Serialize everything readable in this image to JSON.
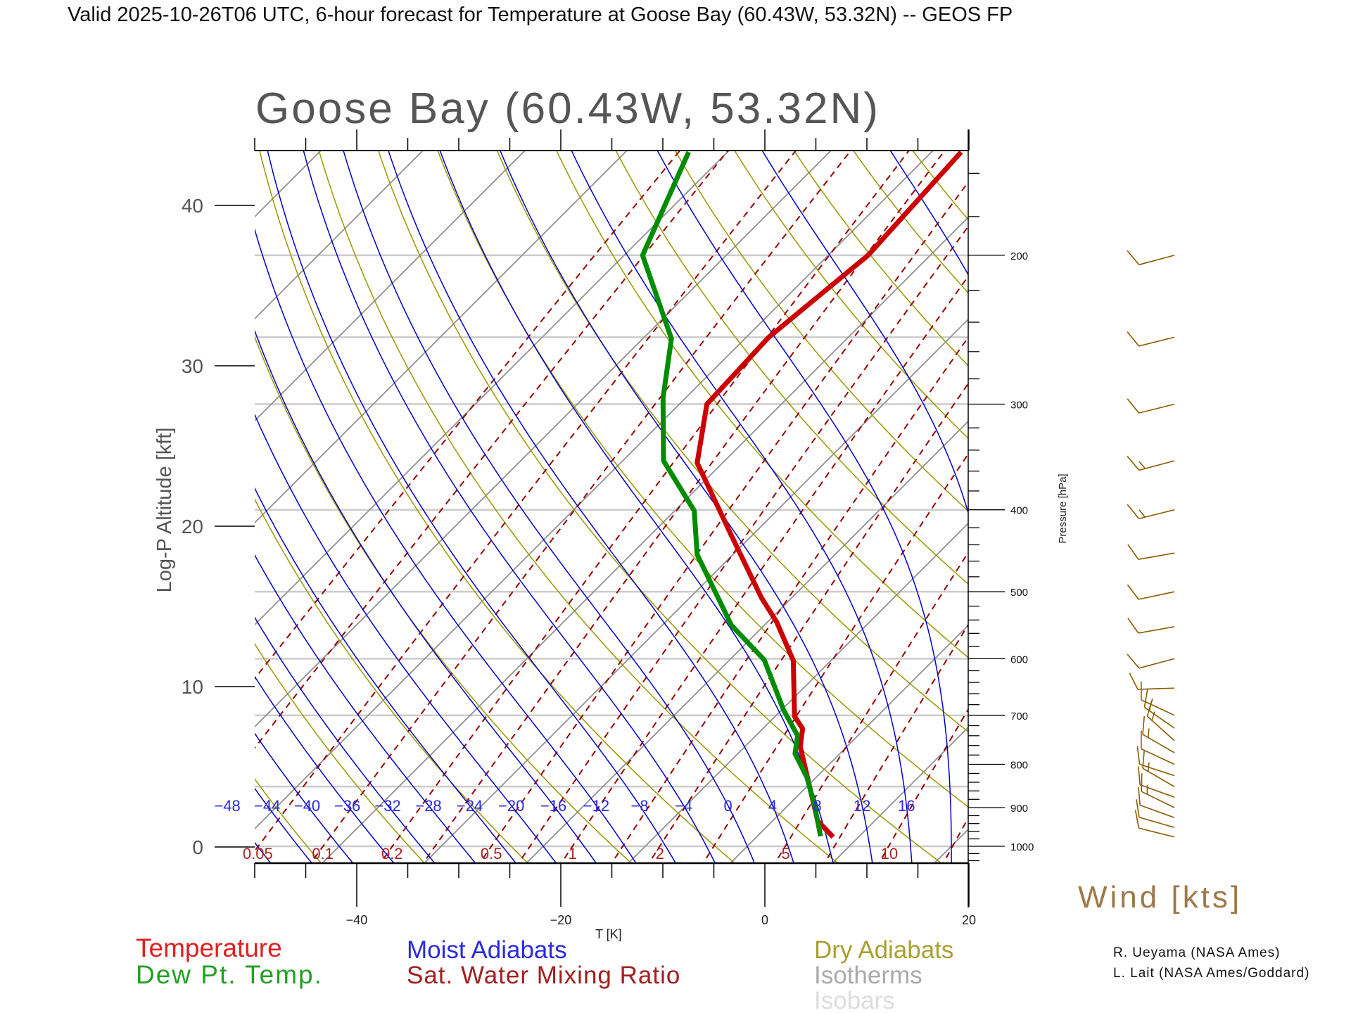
{
  "header": {
    "title": "Valid 2025-10-26T06 UTC, 6-hour forecast for Temperature at Goose Bay (60.43W, 53.32N) -- GEOS FP"
  },
  "chart_data": {
    "type": "line",
    "subtype": "skew-T log-P diagram",
    "title": "Goose Bay (60.43W, 53.32N)",
    "xlabel": "T [K]",
    "ylabel": "Log-P Altitude [kft]",
    "y2label": "Pressure [hPa]",
    "x_ticks": [
      -40,
      -20,
      0,
      20
    ],
    "x_tick_labels": [
      "−40",
      "−20",
      "0",
      "20"
    ],
    "y_ticks": [
      0,
      10,
      20,
      30,
      40
    ],
    "y_tick_labels": [
      "0",
      "10",
      "20",
      "30",
      "40"
    ],
    "pressure_ticks": [
      200,
      300,
      400,
      500,
      600,
      700,
      800,
      900,
      1000
    ],
    "pressure_tick_labels": [
      "200",
      "300",
      "400",
      "500",
      "600",
      "700",
      "800",
      "900",
      "1000"
    ],
    "pressure_range_hPa": [
      1047,
      150
    ],
    "isobars_hPa": [
      1000,
      850,
      700,
      600,
      500,
      400,
      300,
      250,
      200
    ],
    "moist_adiabat_labels": [
      "−48",
      "−44",
      "−40",
      "−36",
      "−32",
      "−28",
      "−24",
      "−20",
      "−16",
      "−12",
      "−8",
      "−4",
      "0",
      "4",
      "8",
      "12",
      "16"
    ],
    "moist_adiabat_values": [
      -48,
      -44,
      -40,
      -36,
      -32,
      -28,
      -24,
      -20,
      -16,
      -12,
      -8,
      -4,
      0,
      4,
      8,
      12,
      16
    ],
    "mixing_ratio_labels": [
      "0.05",
      "0.1",
      "0.2",
      "0.5",
      "1",
      "2",
      "5",
      "10"
    ],
    "mixing_ratio_values": [
      0.05,
      0.1,
      0.2,
      0.5,
      1,
      2,
      5,
      10
    ],
    "series": [
      {
        "name": "Temperature",
        "color": "#cc0000",
        "p": [
          975,
          933,
          762,
          726,
          702,
          603,
          543,
          508,
          430,
          352,
          300,
          250,
          200,
          151
        ],
        "t": [
          7.5,
          4.4,
          -4.6,
          -6.1,
          -8.1,
          -13.7,
          -19.1,
          -23.0,
          -31.9,
          -42.5,
          -47.3,
          -47.8,
          -46.1,
          -47.1
        ]
      },
      {
        "name": "Dew Pt. Temp.",
        "color": "#008c00",
        "p": [
          973,
          895,
          829,
          777,
          740,
          690,
          602,
          548,
          452,
          401,
          350,
          295,
          251,
          200,
          151
        ],
        "t": [
          6.2,
          2.6,
          -0.9,
          -4.4,
          -5.9,
          -9.8,
          -16.6,
          -23.2,
          -33.5,
          -38.1,
          -46.0,
          -52.2,
          -57.2,
          -68.2,
          -73.8
        ]
      }
    ],
    "wind": {
      "label": "Wind [kts]",
      "p": [
        200,
        250,
        300,
        350,
        400,
        450,
        500,
        550,
        600,
        650,
        700,
        725,
        750,
        775,
        800,
        825,
        850,
        875,
        900,
        925,
        950,
        975
      ],
      "dir": [
        255,
        256,
        256,
        255,
        256,
        260,
        258,
        260,
        255,
        268,
        295,
        305,
        312,
        300,
        295,
        288,
        300,
        290,
        296,
        290,
        286,
        284
      ],
      "spd": [
        10,
        10,
        10,
        15,
        15,
        10,
        10,
        10,
        10,
        10,
        12,
        14,
        14,
        13,
        12,
        12,
        14,
        12,
        14,
        12,
        10,
        10
      ]
    },
    "legend": {
      "temperature": "Temperature",
      "dewpoint": "Dew Pt. Temp.",
      "moist": "Moist Adiabats",
      "mixing": "Sat. Water Mixing Ratio",
      "dry": "Dry Adiabats",
      "isotherms": "Isotherms",
      "isobars": "Isobars"
    },
    "colors": {
      "moist": "#0000cc",
      "dry": "#999900",
      "mixing": "#990000",
      "isotherm": "#999999",
      "isobar": "#cccccc",
      "wind": "#8b5a00"
    }
  },
  "credits": {
    "line1": "R. Ueyama (NASA Ames)",
    "line2": "L. Lait (NASA Ames/Goddard)"
  }
}
